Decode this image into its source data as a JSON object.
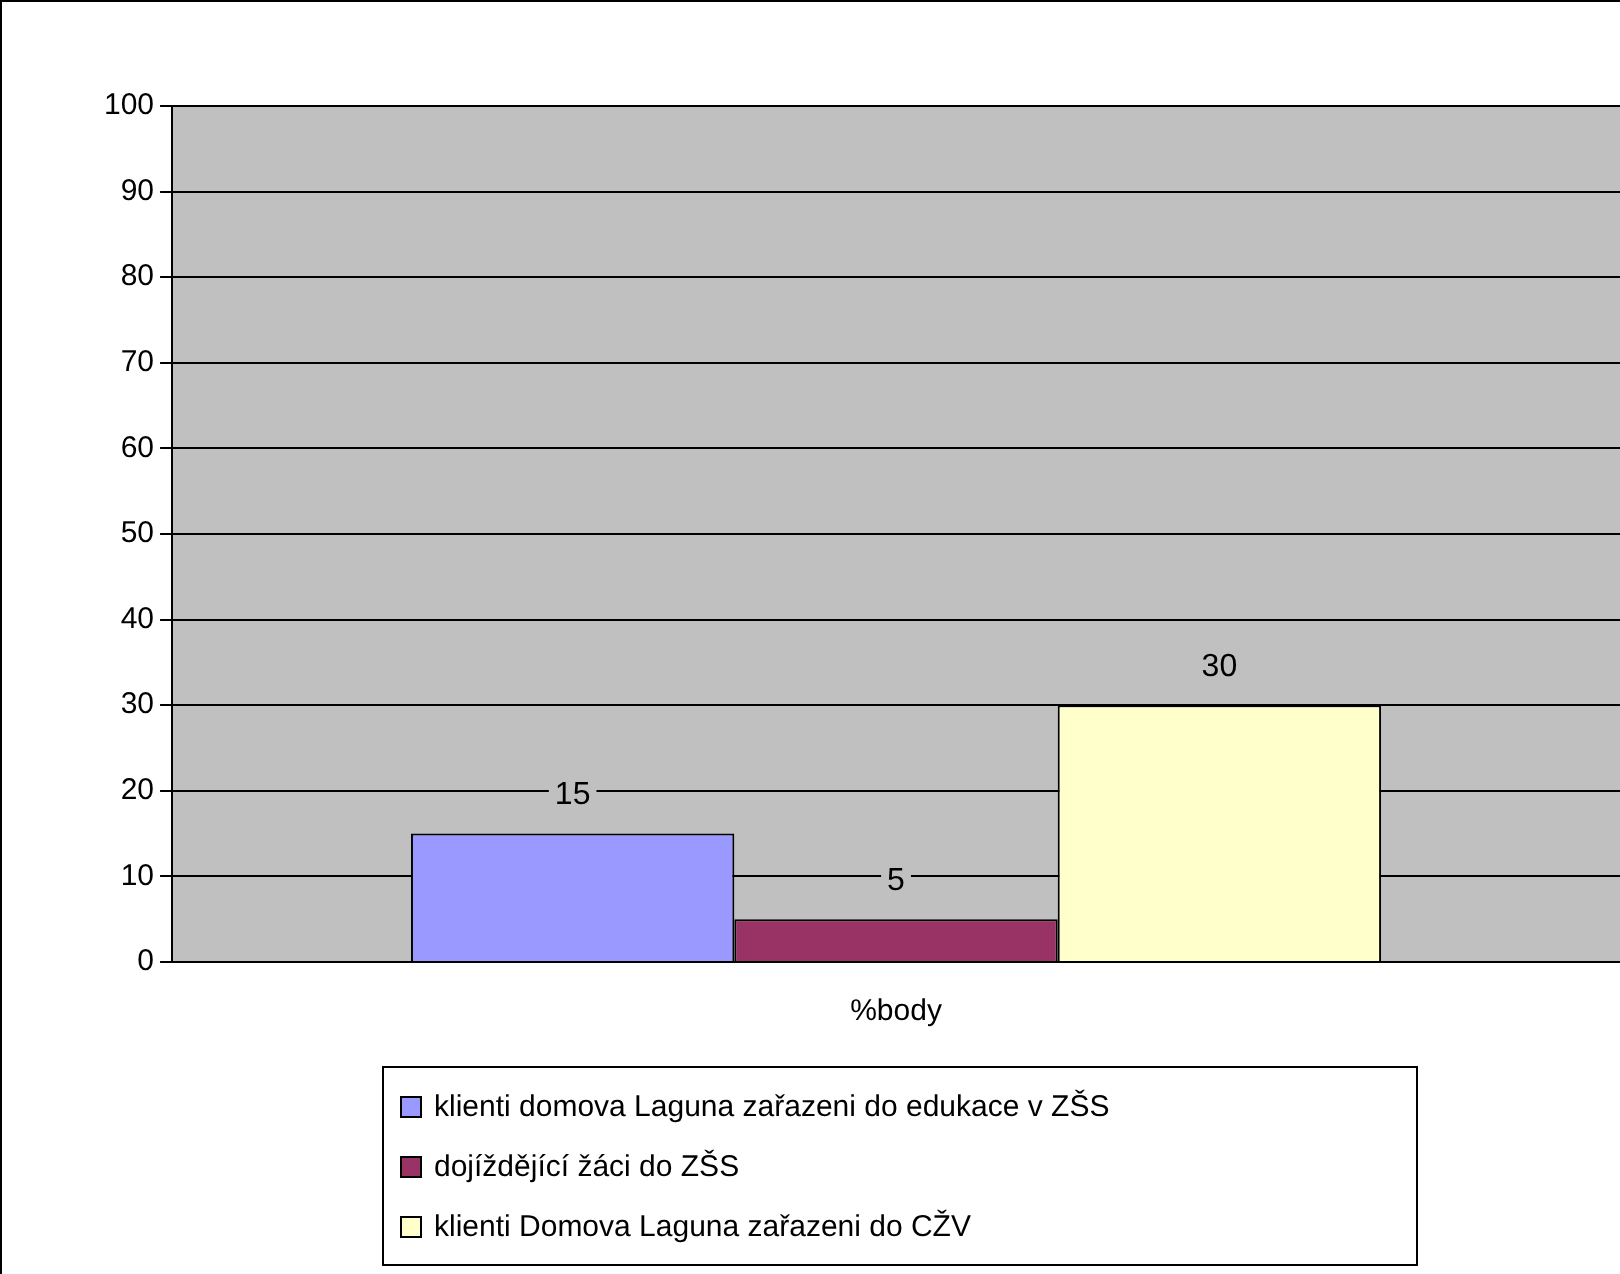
{
  "chart_data": {
    "type": "bar",
    "categories": [
      "%body"
    ],
    "series": [
      {
        "name": "klienti domova Laguna zařazeni do edukace v ZŠS",
        "color": "#9999ff",
        "values": [
          15
        ]
      },
      {
        "name": "dojíždějící žáci do ZŠS",
        "color": "#993366",
        "values": [
          5
        ]
      },
      {
        "name": "klienti Domova Laguna zařazeni do CŽV",
        "color": "#ffffcc",
        "values": [
          30
        ]
      }
    ],
    "ylim": [
      0,
      100
    ],
    "yticks": [
      0,
      10,
      20,
      30,
      40,
      50,
      60,
      70,
      80,
      90,
      100
    ],
    "grid": "y",
    "legend": "bottom",
    "data_labels": true
  }
}
